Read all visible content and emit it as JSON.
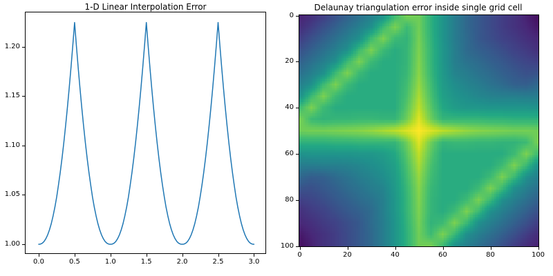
{
  "figure": {
    "background": "#ffffff"
  },
  "chart_data": [
    {
      "type": "line",
      "title": "1-D Linear Interpolation Error",
      "xlabel": "",
      "ylabel": "",
      "line_color": "#1f77b4",
      "line_width": 1.5,
      "xlim": [
        -0.17,
        3.17
      ],
      "ylim": [
        0.989,
        1.235
      ],
      "grid": false,
      "legend": "none",
      "xticks": {
        "values": [
          0.0,
          0.5,
          1.0,
          1.5,
          2.0,
          2.5,
          3.0
        ],
        "labels": [
          "0.0",
          "0.5",
          "1.0",
          "1.5",
          "2.0",
          "2.5",
          "3.0"
        ]
      },
      "yticks": {
        "values": [
          1.0,
          1.05,
          1.1,
          1.15,
          1.2
        ],
        "labels": [
          "1.00",
          "1.05",
          "1.10",
          "1.15",
          "1.20"
        ]
      },
      "x_start": 0.0,
      "x_step": 0.025,
      "peak_value": 1.2247,
      "valley_value": 1.0,
      "values": [
        1.0,
        1.0002,
        1.0011,
        1.0029,
        1.0057,
        1.0096,
        1.0147,
        1.021,
        1.0287,
        1.0376,
        1.0479,
        1.0596,
        1.0726,
        1.087,
        1.1028,
        1.12,
        1.1384,
        1.1581,
        1.1791,
        1.2013,
        1.2247,
        1.2013,
        1.1791,
        1.1581,
        1.1384,
        1.12,
        1.1028,
        1.087,
        1.0726,
        1.0596,
        1.0479,
        1.0376,
        1.0287,
        1.021,
        1.0147,
        1.0096,
        1.0057,
        1.0029,
        1.0011,
        1.0002,
        1.0,
        1.0002,
        1.0011,
        1.0029,
        1.0057,
        1.0096,
        1.0147,
        1.021,
        1.0287,
        1.0376,
        1.0479,
        1.0596,
        1.0726,
        1.087,
        1.1028,
        1.12,
        1.1384,
        1.1581,
        1.1791,
        1.2013,
        1.2247,
        1.2013,
        1.1791,
        1.1581,
        1.1384,
        1.12,
        1.1028,
        1.087,
        1.0726,
        1.0596,
        1.0479,
        1.0376,
        1.0287,
        1.021,
        1.0147,
        1.0096,
        1.0057,
        1.0029,
        1.0011,
        1.0002,
        1.0,
        1.0002,
        1.0011,
        1.0029,
        1.0057,
        1.0096,
        1.0147,
        1.021,
        1.0287,
        1.0376,
        1.0479,
        1.0596,
        1.0726,
        1.087,
        1.1028,
        1.12,
        1.1384,
        1.1581,
        1.1791,
        1.2013,
        1.2247,
        1.2013,
        1.1791,
        1.1581,
        1.1384,
        1.12,
        1.1028,
        1.087,
        1.0726,
        1.0596,
        1.0479,
        1.0376,
        1.0287,
        1.021,
        1.0147,
        1.0096,
        1.0057,
        1.0029,
        1.0011,
        1.0002,
        1.0
      ]
    },
    {
      "type": "heatmap",
      "title": "Delaunay triangulation error inside single grid cell",
      "xlabel": "",
      "ylabel": "",
      "colormap": "viridis",
      "x_range": [
        0,
        100
      ],
      "y_range": [
        0,
        100
      ],
      "y_axis_inverted": true,
      "source_resolution": "101x101 pixels",
      "xticks": {
        "values": [
          0,
          20,
          40,
          60,
          80,
          100
        ],
        "labels": [
          "0",
          "20",
          "40",
          "60",
          "80",
          "100"
        ]
      },
      "yticks": {
        "values": [
          0,
          20,
          40,
          60,
          80,
          100
        ],
        "labels": [
          "0",
          "20",
          "40",
          "60",
          "80",
          "100"
        ]
      },
      "z_description": "normalized color intensity 0-1 (viridis, no colorbar shown); sampled every 5 units, rows top(y=0) to bottom(y=100)",
      "grid_step": 5,
      "values": [
        [
          0.08,
          0.12,
          0.18,
          0.25,
          0.31,
          0.37,
          0.43,
          0.5,
          0.68,
          0.8,
          0.78,
          0.64,
          0.52,
          0.42,
          0.34,
          0.28,
          0.23,
          0.18,
          0.14,
          0.08,
          0.03
        ],
        [
          0.12,
          0.18,
          0.25,
          0.31,
          0.37,
          0.43,
          0.5,
          0.68,
          0.8,
          0.68,
          0.78,
          0.64,
          0.52,
          0.42,
          0.34,
          0.28,
          0.23,
          0.18,
          0.14,
          0.1,
          0.06
        ],
        [
          0.18,
          0.25,
          0.31,
          0.37,
          0.43,
          0.5,
          0.68,
          0.8,
          0.68,
          0.65,
          0.79,
          0.65,
          0.52,
          0.42,
          0.35,
          0.28,
          0.24,
          0.2,
          0.17,
          0.13,
          0.1
        ],
        [
          0.25,
          0.31,
          0.37,
          0.43,
          0.5,
          0.68,
          0.8,
          0.68,
          0.62,
          0.66,
          0.8,
          0.66,
          0.53,
          0.43,
          0.35,
          0.31,
          0.28,
          0.24,
          0.2,
          0.17,
          0.13
        ],
        [
          0.31,
          0.37,
          0.43,
          0.5,
          0.68,
          0.8,
          0.68,
          0.62,
          0.62,
          0.66,
          0.81,
          0.66,
          0.53,
          0.43,
          0.38,
          0.35,
          0.31,
          0.28,
          0.24,
          0.21,
          0.19
        ],
        [
          0.37,
          0.43,
          0.5,
          0.68,
          0.8,
          0.68,
          0.62,
          0.62,
          0.62,
          0.67,
          0.82,
          0.67,
          0.54,
          0.45,
          0.42,
          0.38,
          0.35,
          0.31,
          0.28,
          0.25,
          0.26
        ],
        [
          0.43,
          0.5,
          0.68,
          0.8,
          0.68,
          0.62,
          0.62,
          0.62,
          0.62,
          0.69,
          0.84,
          0.69,
          0.55,
          0.49,
          0.45,
          0.42,
          0.38,
          0.35,
          0.31,
          0.3,
          0.34
        ],
        [
          0.5,
          0.68,
          0.8,
          0.68,
          0.62,
          0.62,
          0.62,
          0.62,
          0.62,
          0.71,
          0.87,
          0.71,
          0.57,
          0.52,
          0.49,
          0.46,
          0.44,
          0.43,
          0.43,
          0.42,
          0.42
        ],
        [
          0.68,
          0.8,
          0.68,
          0.62,
          0.62,
          0.62,
          0.62,
          0.62,
          0.62,
          0.74,
          0.9,
          0.74,
          0.6,
          0.55,
          0.53,
          0.53,
          0.52,
          0.52,
          0.52,
          0.52,
          0.51
        ],
        [
          0.8,
          0.68,
          0.65,
          0.66,
          0.66,
          0.67,
          0.67,
          0.66,
          0.66,
          0.78,
          0.95,
          0.78,
          0.66,
          0.66,
          0.66,
          0.66,
          0.65,
          0.65,
          0.64,
          0.64,
          0.64
        ],
        [
          0.78,
          0.79,
          0.79,
          0.8,
          0.81,
          0.82,
          0.84,
          0.87,
          0.9,
          0.95,
          1.0,
          0.95,
          0.9,
          0.87,
          0.84,
          0.82,
          0.81,
          0.8,
          0.79,
          0.79,
          0.78
        ],
        [
          0.64,
          0.64,
          0.64,
          0.65,
          0.65,
          0.66,
          0.66,
          0.66,
          0.66,
          0.78,
          0.95,
          0.78,
          0.66,
          0.67,
          0.67,
          0.66,
          0.66,
          0.65,
          0.65,
          0.68,
          0.8
        ],
        [
          0.51,
          0.52,
          0.52,
          0.52,
          0.52,
          0.53,
          0.53,
          0.55,
          0.6,
          0.74,
          0.9,
          0.74,
          0.62,
          0.62,
          0.62,
          0.62,
          0.62,
          0.62,
          0.68,
          0.8,
          0.68
        ],
        [
          0.42,
          0.42,
          0.43,
          0.43,
          0.44,
          0.46,
          0.49,
          0.52,
          0.57,
          0.71,
          0.87,
          0.71,
          0.62,
          0.62,
          0.62,
          0.62,
          0.62,
          0.68,
          0.8,
          0.68,
          0.5
        ],
        [
          0.34,
          0.3,
          0.31,
          0.35,
          0.38,
          0.42,
          0.45,
          0.49,
          0.55,
          0.69,
          0.84,
          0.69,
          0.62,
          0.62,
          0.62,
          0.62,
          0.68,
          0.8,
          0.68,
          0.5,
          0.43
        ],
        [
          0.26,
          0.25,
          0.28,
          0.31,
          0.35,
          0.38,
          0.42,
          0.45,
          0.54,
          0.67,
          0.82,
          0.67,
          0.62,
          0.62,
          0.62,
          0.68,
          0.8,
          0.68,
          0.5,
          0.43,
          0.37
        ],
        [
          0.19,
          0.21,
          0.24,
          0.28,
          0.31,
          0.35,
          0.38,
          0.43,
          0.53,
          0.66,
          0.81,
          0.66,
          0.62,
          0.62,
          0.68,
          0.8,
          0.68,
          0.5,
          0.43,
          0.37,
          0.31
        ],
        [
          0.13,
          0.17,
          0.2,
          0.24,
          0.28,
          0.31,
          0.35,
          0.43,
          0.53,
          0.66,
          0.8,
          0.66,
          0.62,
          0.68,
          0.8,
          0.68,
          0.5,
          0.43,
          0.37,
          0.31,
          0.25
        ],
        [
          0.1,
          0.13,
          0.17,
          0.2,
          0.24,
          0.28,
          0.35,
          0.42,
          0.52,
          0.65,
          0.79,
          0.65,
          0.68,
          0.8,
          0.68,
          0.5,
          0.43,
          0.37,
          0.31,
          0.25,
          0.18
        ],
        [
          0.06,
          0.1,
          0.14,
          0.18,
          0.23,
          0.28,
          0.34,
          0.42,
          0.52,
          0.64,
          0.78,
          0.68,
          0.8,
          0.68,
          0.5,
          0.43,
          0.37,
          0.31,
          0.25,
          0.18,
          0.12
        ],
        [
          0.03,
          0.08,
          0.14,
          0.18,
          0.23,
          0.28,
          0.34,
          0.42,
          0.52,
          0.64,
          0.78,
          0.8,
          0.68,
          0.5,
          0.43,
          0.37,
          0.31,
          0.25,
          0.18,
          0.12,
          0.08
        ]
      ]
    }
  ]
}
